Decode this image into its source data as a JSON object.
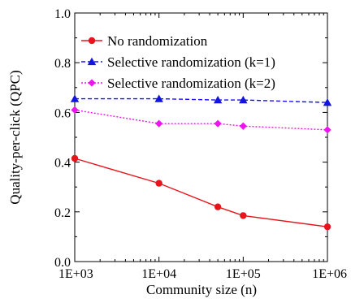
{
  "chart_data": {
    "type": "line",
    "title": "",
    "xlabel": "Community size (n)",
    "ylabel": "Quality-per-click (QPC)",
    "xscale": "log",
    "xlim": [
      1000,
      1000000
    ],
    "ylim": [
      0.0,
      1.0
    ],
    "x_ticks": [
      1000,
      10000,
      100000,
      1000000
    ],
    "x_tick_labels": [
      "1E+03",
      "1E+04",
      "1E+05",
      "1E+06"
    ],
    "y_ticks": [
      0.0,
      0.2,
      0.4,
      0.6,
      0.8,
      1.0
    ],
    "y_tick_labels": [
      "0.0",
      "0.2",
      "0.4",
      "0.6",
      "0.8",
      "1.0"
    ],
    "grid": false,
    "legend_position": "top-left",
    "series": [
      {
        "name": "No randomization",
        "color": "#e8141c",
        "marker": "circle",
        "line_style": "solid",
        "x": [
          1000,
          10000,
          50000,
          100000,
          1000000
        ],
        "y": [
          0.415,
          0.315,
          0.22,
          0.185,
          0.14
        ]
      },
      {
        "name": "Selective randomization (k=1)",
        "color": "#1414e0",
        "marker": "triangle",
        "line_style": "dashed",
        "x": [
          1000,
          10000,
          50000,
          100000,
          1000000
        ],
        "y": [
          0.655,
          0.655,
          0.65,
          0.65,
          0.64
        ]
      },
      {
        "name": "Selective randomization (k=2)",
        "color": "#ee14ee",
        "marker": "diamond",
        "line_style": "dotted",
        "x": [
          1000,
          10000,
          50000,
          100000,
          1000000
        ],
        "y": [
          0.61,
          0.555,
          0.555,
          0.545,
          0.53
        ]
      }
    ]
  }
}
